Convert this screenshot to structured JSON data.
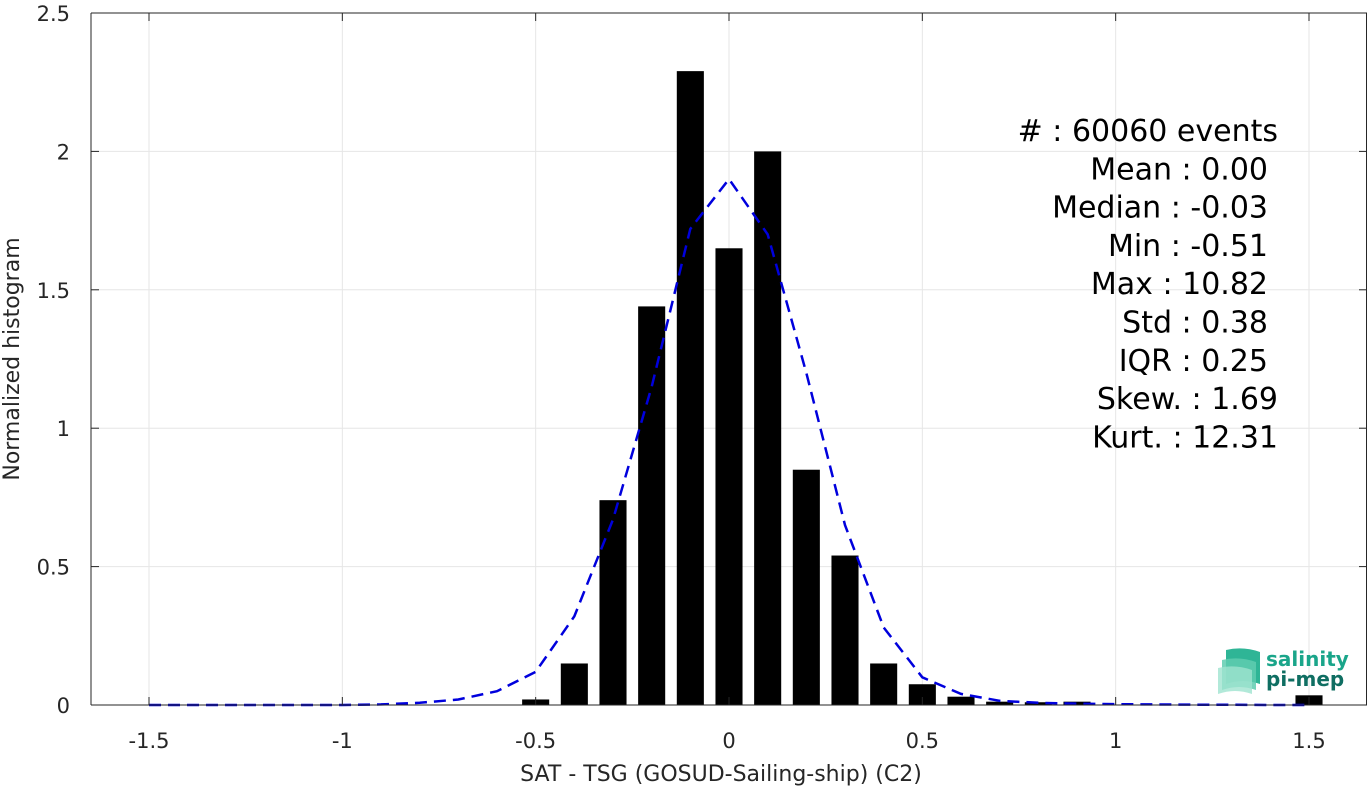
{
  "chart_data": {
    "type": "bar",
    "xlabel": "SAT - TSG (GOSUD-Sailing-ship) (C2)",
    "ylabel": "Normalized histogram",
    "xlim": [
      -1.65,
      1.65
    ],
    "ylim": [
      0,
      2.5
    ],
    "xticks": [
      -1.5,
      -1,
      -0.5,
      0,
      0.5,
      1,
      1.5
    ],
    "xtick_labels": [
      "-1.5",
      "-1",
      "-0.5",
      "0",
      "0.5",
      "1",
      "1.5"
    ],
    "yticks": [
      0,
      0.5,
      1,
      1.5,
      2,
      2.5
    ],
    "ytick_labels": [
      "0",
      "0.5",
      "1",
      "1.5",
      "2",
      "2.5"
    ],
    "grid": true,
    "bar_width": 0.07,
    "bars": {
      "x": [
        -0.5,
        -0.4,
        -0.3,
        -0.2,
        -0.1,
        0.0,
        0.1,
        0.2,
        0.3,
        0.4,
        0.5,
        0.6,
        0.7,
        0.8,
        0.9,
        1.5
      ],
      "values": [
        0.02,
        0.15,
        0.74,
        1.44,
        2.29,
        1.65,
        2.0,
        0.85,
        0.54,
        0.15,
        0.075,
        0.03,
        0.012,
        0.01,
        0.012,
        0.035
      ],
      "color": "#000000"
    },
    "fit_curve": {
      "style": "dashed",
      "color": "#0000dd",
      "x": [
        -1.5,
        -1.4,
        -1.3,
        -1.2,
        -1.1,
        -1.0,
        -0.9,
        -0.8,
        -0.7,
        -0.6,
        -0.5,
        -0.4,
        -0.3,
        -0.2,
        -0.1,
        0.0,
        0.1,
        0.2,
        0.3,
        0.4,
        0.5,
        0.6,
        0.7,
        0.8,
        0.9,
        1.0,
        1.1,
        1.2,
        1.3,
        1.4,
        1.5
      ],
      "y": [
        0,
        0,
        0,
        0,
        0,
        0,
        0.002,
        0.008,
        0.02,
        0.05,
        0.12,
        0.32,
        0.67,
        1.15,
        1.72,
        1.9,
        1.7,
        1.2,
        0.65,
        0.28,
        0.1,
        0.04,
        0.015,
        0.008,
        0.005,
        0.003,
        0.002,
        0.001,
        0.001,
        0,
        0
      ]
    },
    "stats": [
      "#  : 60060 events",
      "Mean : 0.00",
      "Median : -0.03",
      "Min : -0.51",
      "Max : 10.82",
      "Std : 0.38",
      "IQR : 0.25",
      "Skew. : 1.69",
      "Kurt. : 12.31"
    ]
  },
  "logo": {
    "line1": "salinity",
    "line2": "pi-mep",
    "color_primary": "#1aa58a",
    "color_secondary": "#0f6e62"
  }
}
